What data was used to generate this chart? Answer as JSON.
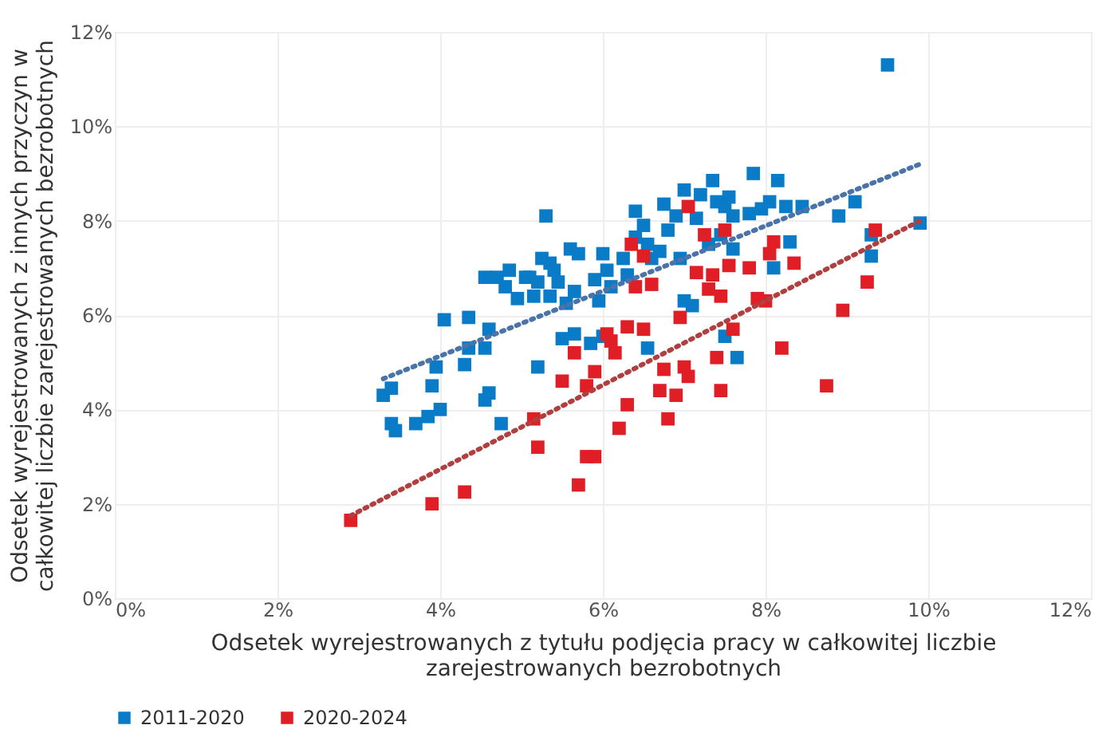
{
  "chart_data": {
    "type": "scatter",
    "xlabel": "Odsetek wyrejestrowanych z tytułu podjęcia pracy w całkowitej liczbie\nzarejestrowanych bezrobotnych",
    "ylabel": "Odsetek wyrejestrowanych z innych przyczyn w\ncałkowitej liczbie zarejestrowanych bezrobotnych",
    "xlim": [
      0,
      12
    ],
    "ylim": [
      0,
      12
    ],
    "xticks": [
      {
        "value": 0,
        "label": "0%"
      },
      {
        "value": 2,
        "label": "2%"
      },
      {
        "value": 4,
        "label": "4%"
      },
      {
        "value": 6,
        "label": "6%"
      },
      {
        "value": 8,
        "label": "8%"
      },
      {
        "value": 10,
        "label": "10%"
      },
      {
        "value": 12,
        "label": "12%"
      }
    ],
    "yticks": [
      {
        "value": 0,
        "label": "0%"
      },
      {
        "value": 2,
        "label": "2%"
      },
      {
        "value": 4,
        "label": "4%"
      },
      {
        "value": 6,
        "label": "6%"
      },
      {
        "value": 8,
        "label": "8%"
      },
      {
        "value": 10,
        "label": "10%"
      },
      {
        "value": 12,
        "label": "12%"
      }
    ],
    "grid": true,
    "legend": "bottom",
    "marker": "square",
    "series": [
      {
        "name": "2011-2020",
        "color": "#0a7bc7",
        "x": [
          3.3,
          3.4,
          3.45,
          3.4,
          3.7,
          3.9,
          3.85,
          4.0,
          3.95,
          4.05,
          4.35,
          4.3,
          4.35,
          4.55,
          4.6,
          4.55,
          4.6,
          4.75,
          4.55,
          4.7,
          4.85,
          4.8,
          4.95,
          5.05,
          5.15,
          5.2,
          5.25,
          5.35,
          5.3,
          5.35,
          5.2,
          5.1,
          5.4,
          5.45,
          5.55,
          5.5,
          5.6,
          5.7,
          5.65,
          5.65,
          5.85,
          5.95,
          6.0,
          5.9,
          6.05,
          6.0,
          6.1,
          6.25,
          6.3,
          6.4,
          6.4,
          6.5,
          6.55,
          6.6,
          6.7,
          6.55,
          6.75,
          6.8,
          6.9,
          7.0,
          6.95,
          7.0,
          7.1,
          7.15,
          7.2,
          7.3,
          7.35,
          7.4,
          7.45,
          7.5,
          7.55,
          7.6,
          7.6,
          7.5,
          7.65,
          7.8,
          7.85,
          7.95,
          8.05,
          8.15,
          8.1,
          8.25,
          8.3,
          8.45,
          8.9,
          9.1,
          9.3,
          9.3,
          9.5,
          9.9
        ],
        "values": [
          4.3,
          3.7,
          3.55,
          4.45,
          3.7,
          4.5,
          3.85,
          4.0,
          4.9,
          5.9,
          5.95,
          4.95,
          5.3,
          4.2,
          4.35,
          5.3,
          5.7,
          3.7,
          6.8,
          6.8,
          6.95,
          6.6,
          6.35,
          6.8,
          6.4,
          6.7,
          7.2,
          7.1,
          8.1,
          6.4,
          4.9,
          6.8,
          6.95,
          6.7,
          6.25,
          5.5,
          7.4,
          7.3,
          6.5,
          5.6,
          5.4,
          6.3,
          5.55,
          6.75,
          6.95,
          7.3,
          6.6,
          7.2,
          6.85,
          7.65,
          8.2,
          7.9,
          7.5,
          7.2,
          7.35,
          5.3,
          8.35,
          7.8,
          8.1,
          8.65,
          7.2,
          6.3,
          6.2,
          8.05,
          8.55,
          7.5,
          8.85,
          8.4,
          7.7,
          8.3,
          8.5,
          8.1,
          7.4,
          5.55,
          5.1,
          8.15,
          9.0,
          8.25,
          8.4,
          8.85,
          7.0,
          8.3,
          7.55,
          8.3,
          8.1,
          8.4,
          7.7,
          7.25,
          11.3,
          7.95
        ]
      },
      {
        "name": "2020-2024",
        "color": "#e01e25",
        "x": [
          2.9,
          3.9,
          4.3,
          5.15,
          5.2,
          5.5,
          5.65,
          5.7,
          5.8,
          5.9,
          5.8,
          5.9,
          6.05,
          6.1,
          6.15,
          6.2,
          6.3,
          6.3,
          6.35,
          6.4,
          6.5,
          6.6,
          6.7,
          6.75,
          6.8,
          6.9,
          7.0,
          7.05,
          7.05,
          7.15,
          7.25,
          7.3,
          7.35,
          7.4,
          7.45,
          7.45,
          7.5,
          7.55,
          7.6,
          7.8,
          7.9,
          8.0,
          8.05,
          8.1,
          8.2,
          8.35,
          8.75,
          8.95,
          9.25,
          9.35,
          6.5,
          6.95
        ],
        "values": [
          1.65,
          2.0,
          2.25,
          3.8,
          3.2,
          4.6,
          5.2,
          2.4,
          3.0,
          3.0,
          4.5,
          4.8,
          5.6,
          5.45,
          5.2,
          3.6,
          4.1,
          5.75,
          7.5,
          6.6,
          7.25,
          6.65,
          4.4,
          4.85,
          3.8,
          4.3,
          4.9,
          4.7,
          8.3,
          6.9,
          7.7,
          6.55,
          6.85,
          5.1,
          4.4,
          6.4,
          7.8,
          7.05,
          5.7,
          7.0,
          6.35,
          6.3,
          7.3,
          7.55,
          5.3,
          7.1,
          4.5,
          6.1,
          6.7,
          7.8,
          5.7,
          5.95
        ]
      },
      {
        "type": "line",
        "color": "#4a74a8",
        "line_style": "dotted",
        "marker": "none",
        "x": [
          3.3,
          9.9
        ],
        "values": [
          4.65,
          9.2
        ]
      },
      {
        "type": "line",
        "color": "#b04040",
        "line_style": "dotted",
        "marker": "none",
        "x": [
          2.9,
          9.9
        ],
        "values": [
          1.75,
          8.0
        ]
      }
    ]
  }
}
